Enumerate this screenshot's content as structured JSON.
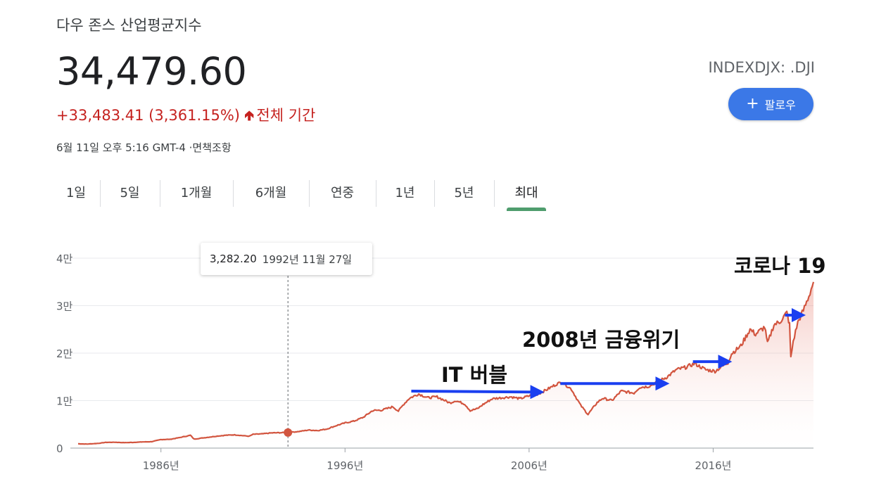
{
  "header": {
    "title": "다우 존스 산업평균지수",
    "price": "34,479.60",
    "change": "+33,483.41 (3,361.15%)",
    "change_period": "전체 기간",
    "timestamp": "6월 11일 오후 5:16 GMT-4 ·면책조항",
    "ticker": "INDEXDJX: .DJI",
    "follow_label": "팔로우",
    "follow_icon": "plus-icon",
    "up_color": "#c5221f",
    "accent_color": "#3b78e7"
  },
  "tabs": [
    {
      "label": "1일",
      "active": false
    },
    {
      "label": "5일",
      "active": false
    },
    {
      "label": "1개월",
      "active": false
    },
    {
      "label": "6개월",
      "active": false
    },
    {
      "label": "연중",
      "active": false
    },
    {
      "label": "1년",
      "active": false
    },
    {
      "label": "5년",
      "active": false
    },
    {
      "label": "최대",
      "active": true
    }
  ],
  "tooltip": {
    "value": "3,282.20",
    "date": "1992년 11월 27일"
  },
  "annotations": {
    "covid": "코로나 19",
    "financial_crisis": "2008년 금융위기",
    "it_bubble": "IT 버블"
  },
  "chart_data": {
    "type": "area",
    "ylim": [
      0,
      40000
    ],
    "xlim": [
      1981.5,
      2021.45
    ],
    "yticks": [
      {
        "value": 0,
        "label": "0"
      },
      {
        "value": 10000,
        "label": "1만"
      },
      {
        "value": 20000,
        "label": "2만"
      },
      {
        "value": 30000,
        "label": "3만"
      },
      {
        "value": 40000,
        "label": "4만"
      }
    ],
    "xticks": [
      {
        "value": 1986,
        "label": "1986년"
      },
      {
        "value": 1996,
        "label": "1996년"
      },
      {
        "value": 2006,
        "label": "2006년"
      },
      {
        "value": 2016,
        "label": "2016년"
      }
    ],
    "line_color": "#d2553f",
    "hover_point": {
      "x": 1992.9,
      "y": 3282.2
    },
    "arrows": [
      {
        "from": [
          1999.6,
          12000
        ],
        "to": [
          2006.6,
          11800
        ]
      },
      {
        "from": [
          2007.7,
          13600
        ],
        "to": [
          2013.4,
          13600
        ]
      },
      {
        "from": [
          2014.9,
          18200
        ],
        "to": [
          2016.8,
          18200
        ]
      },
      {
        "from": [
          2019.9,
          28000
        ],
        "to": [
          2020.8,
          28000
        ]
      }
    ],
    "series": [
      {
        "x": [
          1981.5,
          1982.0,
          1982.6,
          1983.0,
          1983.5,
          1984.0,
          1984.5,
          1985.0,
          1985.5,
          1986.0,
          1986.5,
          1987.0,
          1987.6,
          1987.8,
          1988.0,
          1989.0,
          1989.5,
          1990.0,
          1990.5,
          1990.8,
          1991.0,
          1991.5,
          1992.0,
          1992.9,
          1993.5,
          1994.0,
          1994.5,
          1995.0,
          1995.5,
          1996.0,
          1996.5,
          1997.0,
          1997.5,
          1998.0,
          1998.6,
          1998.9,
          1999.2,
          1999.5,
          2000.0,
          2000.5,
          2001.0,
          2001.7,
          2002.0,
          2002.5,
          2002.8,
          2003.2,
          2003.5,
          2004.0,
          2005.0,
          2005.5,
          2006.0,
          2006.5,
          2007.0,
          2007.5,
          2007.8,
          2008.3,
          2008.8,
          2009.2,
          2009.7,
          2010.0,
          2010.5,
          2011.0,
          2011.7,
          2012.0,
          2012.5,
          2013.0,
          2013.5,
          2014.0,
          2014.5,
          2015.0,
          2015.6,
          2016.1,
          2016.8,
          2017.0,
          2017.5,
          2018.0,
          2018.3,
          2018.8,
          2018.95,
          2019.3,
          2019.6,
          2020.0,
          2020.15,
          2020.22,
          2020.35,
          2020.6,
          2020.9,
          2021.2,
          2021.45
        ],
        "y": [
          900,
          850,
          1000,
          1200,
          1230,
          1150,
          1200,
          1300,
          1350,
          1800,
          1850,
          2200,
          2700,
          1900,
          2000,
          2500,
          2700,
          2800,
          2600,
          2500,
          2900,
          3000,
          3200,
          3282,
          3500,
          3800,
          3700,
          4000,
          4700,
          5300,
          5700,
          6500,
          7900,
          8000,
          8700,
          7800,
          9300,
          10500,
          11400,
          10600,
          10800,
          9500,
          10000,
          9300,
          7900,
          8300,
          9200,
          10400,
          10800,
          10400,
          11000,
          11400,
          12400,
          13500,
          13900,
          12400,
          9000,
          7100,
          9600,
          10500,
          10000,
          12000,
          11600,
          12800,
          13000,
          14000,
          15000,
          16500,
          17000,
          17800,
          16500,
          16200,
          18000,
          19900,
          21500,
          25000,
          24000,
          25500,
          22000,
          26000,
          26500,
          28500,
          26000,
          19000,
          22500,
          26500,
          29000,
          32000,
          35000
        ]
      }
    ]
  }
}
